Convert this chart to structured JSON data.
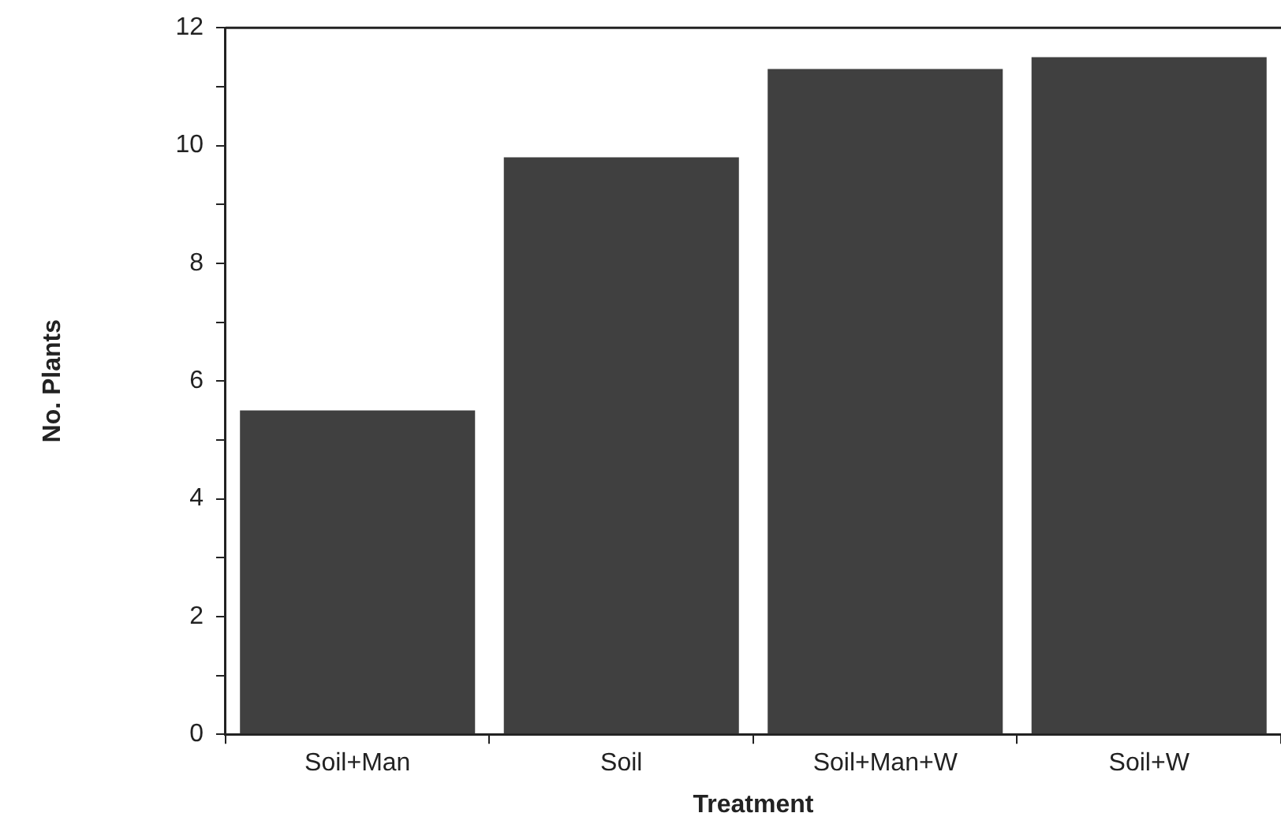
{
  "chart_data": {
    "type": "bar",
    "xlabel": "Treatment",
    "ylabel": "No. Plants",
    "categories": [
      "Soil+Man",
      "Soil",
      "Soil+Man+W",
      "Soil+W"
    ],
    "values": [
      5.5,
      9.8,
      11.3,
      11.5
    ],
    "color": "#404040",
    "ylim": [
      0,
      12
    ],
    "yticks": [
      0,
      {
        "value": 1,
        "label": null
      },
      2,
      {
        "value": 3,
        "label": null
      },
      4,
      {
        "value": 5,
        "label": null
      },
      6,
      {
        "value": 7,
        "label": null
      },
      8,
      {
        "value": 9,
        "label": null
      },
      10,
      {
        "value": 11,
        "label": null
      },
      12
    ],
    "grid": false,
    "legend": false
  }
}
